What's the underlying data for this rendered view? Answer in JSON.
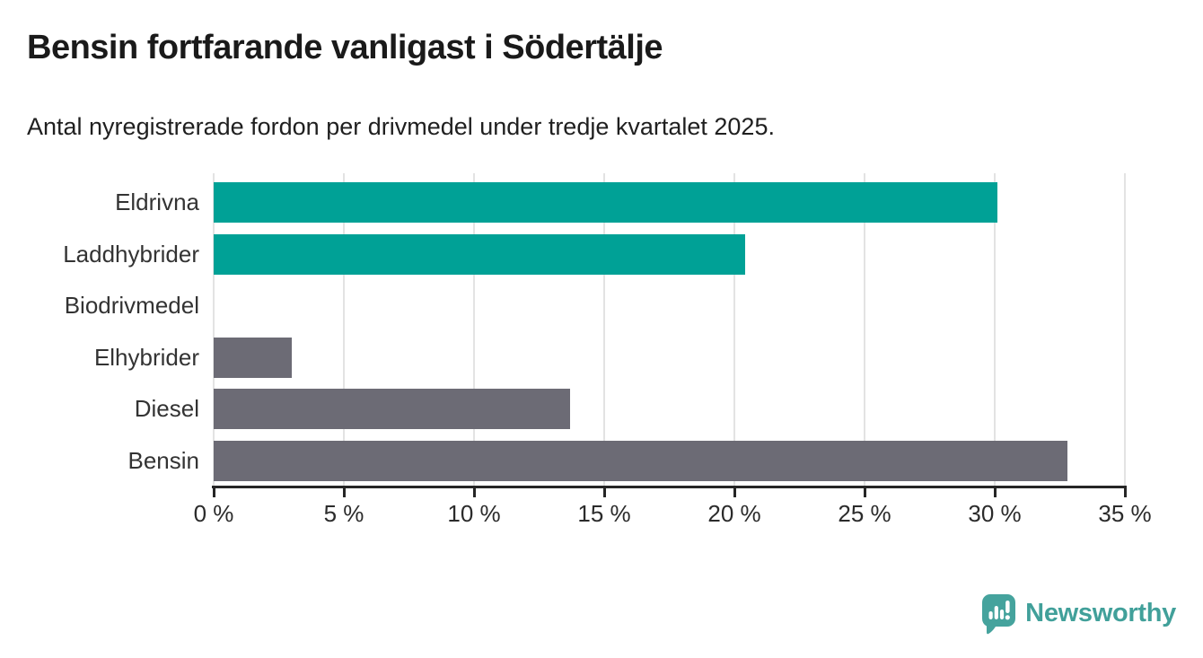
{
  "header": {
    "title": "Bensin fortfarande vanligast i Södertälje",
    "subtitle": "Antal nyregistrerade fordon per drivmedel under tredje kvartalet 2025."
  },
  "chart_data": {
    "type": "bar",
    "orientation": "horizontal",
    "title": "Bensin fortfarande vanligast i Södertälje",
    "subtitle": "Antal nyregistrerade fordon per drivmedel under tredje kvartalet 2025.",
    "categories": [
      "Eldrivna",
      "Laddhybrider",
      "Biodrivmedel",
      "Elhybrider",
      "Diesel",
      "Bensin"
    ],
    "values": [
      30.1,
      20.4,
      0,
      3.0,
      13.7,
      32.8
    ],
    "unit": "%",
    "xlim": [
      0,
      35
    ],
    "x_ticks": [
      0,
      5,
      10,
      15,
      20,
      25,
      30,
      35
    ],
    "x_tick_labels": [
      "0 %",
      "5 %",
      "10 %",
      "15 %",
      "20 %",
      "25 %",
      "30 %",
      "35 %"
    ],
    "grid": true,
    "legend": false,
    "bar_colors": [
      "#00a196",
      "#00a196",
      "#00a196",
      "#6c6b75",
      "#6c6b75",
      "#6c6b75"
    ]
  },
  "colors": {
    "teal_bar": "#00a196",
    "gray_bar": "#6c6b75",
    "gridline": "#e3e3e3",
    "axis": "#262626",
    "brand_teal": "#41a09a"
  },
  "footer": {
    "brand": "Newsworthy",
    "logo_icon": "newsworthy-pin-barchart-icon"
  }
}
